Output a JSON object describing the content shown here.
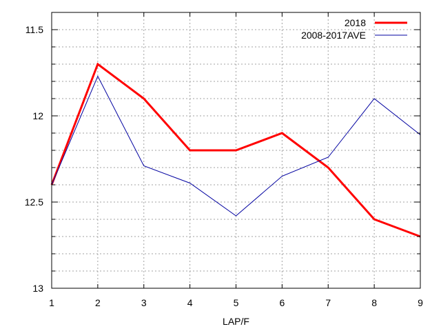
{
  "chart_data": {
    "type": "line",
    "title": "",
    "xlabel": "LAP/F",
    "ylabel": "",
    "x": [
      1,
      2,
      3,
      4,
      5,
      6,
      7,
      8,
      9
    ],
    "xlim": [
      1,
      9
    ],
    "ylim": [
      11.4,
      13
    ],
    "y_inverted": true,
    "x_ticks": [
      "1",
      "2",
      "3",
      "4",
      "5",
      "6",
      "7",
      "8",
      "9"
    ],
    "y_ticks": [
      {
        "value": 11.5,
        "label": "11.5"
      },
      {
        "value": 12,
        "label": "12"
      },
      {
        "value": 12.5,
        "label": "12.5"
      },
      {
        "value": 13,
        "label": "13"
      }
    ],
    "y_minor_step": 0.1,
    "grid": true,
    "legend_position": "top-right",
    "series": [
      {
        "name": "2018",
        "color": "#ff0000",
        "values": [
          12.4,
          11.7,
          11.9,
          12.2,
          12.2,
          12.1,
          12.3,
          12.6,
          12.7
        ]
      },
      {
        "name": "2008-2017AVE",
        "color": "#0000a0",
        "values": [
          12.4,
          11.77,
          12.29,
          12.39,
          12.58,
          12.35,
          12.24,
          11.9,
          12.11
        ]
      }
    ]
  }
}
